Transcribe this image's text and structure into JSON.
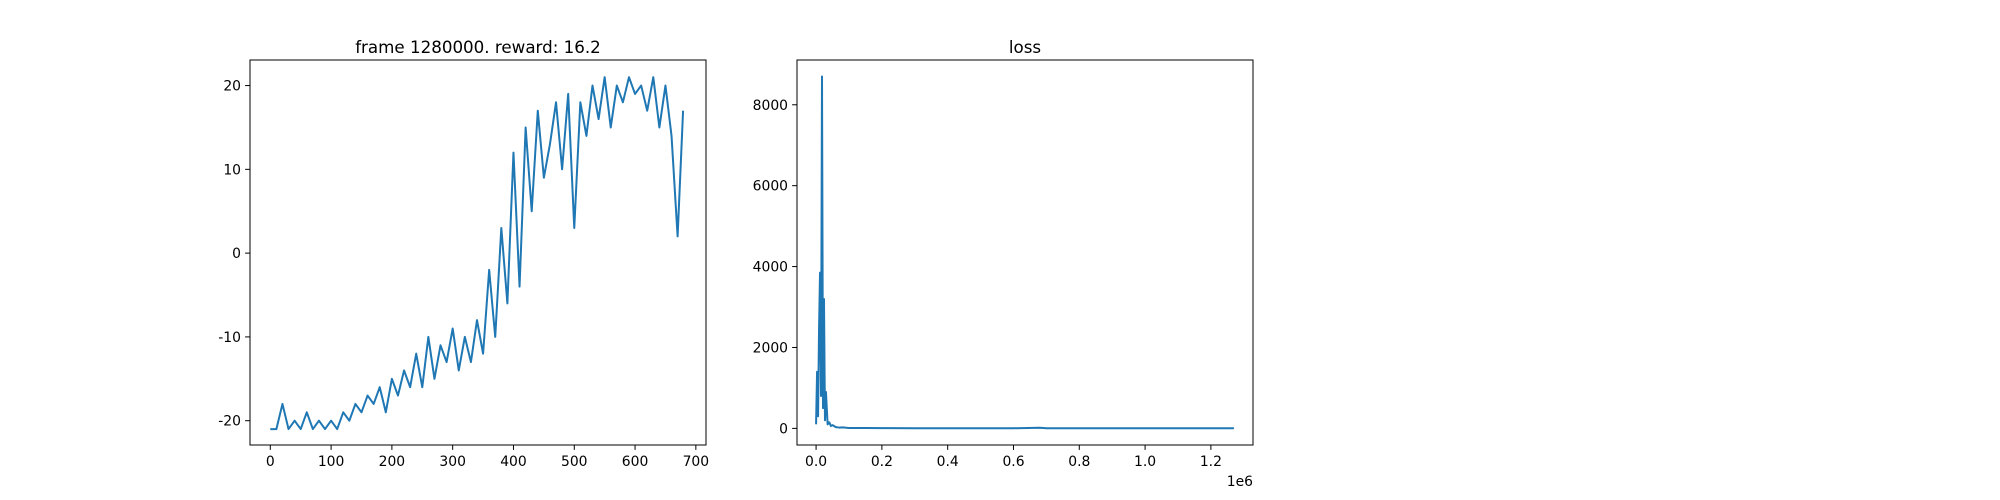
{
  "chart_data": [
    {
      "type": "line",
      "title": "frame 1280000. reward: 16.2",
      "color": "#1f77b4",
      "x": [
        0,
        10,
        20,
        30,
        40,
        50,
        60,
        70,
        80,
        90,
        100,
        110,
        120,
        130,
        140,
        150,
        160,
        170,
        180,
        190,
        200,
        210,
        220,
        230,
        240,
        250,
        260,
        270,
        280,
        290,
        300,
        310,
        320,
        330,
        340,
        350,
        360,
        370,
        380,
        390,
        400,
        410,
        420,
        430,
        440,
        450,
        460,
        470,
        480,
        490,
        500,
        510,
        520,
        530,
        540,
        550,
        560,
        570,
        580,
        590,
        600,
        610,
        620,
        630,
        640,
        650,
        660,
        670,
        679
      ],
      "values": [
        -21,
        -21,
        -18,
        -21,
        -20,
        -21,
        -19,
        -21,
        -20,
        -21,
        -20,
        -21,
        -19,
        -20,
        -18,
        -19,
        -17,
        -18,
        -16,
        -19,
        -15,
        -17,
        -14,
        -16,
        -12,
        -16,
        -10,
        -15,
        -11,
        -13,
        -9,
        -14,
        -10,
        -13,
        -8,
        -12,
        -2,
        -10,
        3,
        -6,
        12,
        -4,
        15,
        5,
        17,
        9,
        13,
        18,
        10,
        19,
        3,
        18,
        14,
        20,
        16,
        21,
        15,
        20,
        18,
        21,
        19,
        20,
        17,
        21,
        15,
        20,
        14,
        2,
        17
      ],
      "xlim": [
        -33.4,
        716.7
      ],
      "xticks": [
        0,
        100,
        200,
        300,
        400,
        500,
        600,
        700
      ],
      "ylim": [
        -22.9,
        23.05
      ],
      "yticks": [
        -20,
        -10,
        0,
        10,
        20
      ]
    },
    {
      "type": "line",
      "title": "loss",
      "color": "#1f77b4",
      "x": [
        0,
        3000,
        6000,
        9000,
        12000,
        15000,
        18000,
        21000,
        24000,
        27000,
        30000,
        35000,
        40000,
        45000,
        50000,
        60000,
        70000,
        80000,
        100000,
        150000,
        200000,
        300000,
        400000,
        500000,
        600000,
        680000,
        700000,
        800000,
        900000,
        1000000,
        1100000,
        1200000,
        1270000
      ],
      "values": [
        100,
        1400,
        300,
        2450,
        3850,
        800,
        8700,
        500,
        3200,
        200,
        900,
        100,
        150,
        60,
        80,
        30,
        20,
        25,
        10,
        8,
        5,
        4,
        3,
        3,
        3,
        15,
        3,
        2,
        2,
        2,
        2,
        2,
        2
      ],
      "xlim": [
        -58000,
        1328000
      ],
      "xticks": [
        {
          "value": 0,
          "label": "0.0"
        },
        {
          "value": 200000,
          "label": "0.2"
        },
        {
          "value": 400000,
          "label": "0.4"
        },
        {
          "value": 600000,
          "label": "0.6"
        },
        {
          "value": 800000,
          "label": "0.8"
        },
        {
          "value": 1000000,
          "label": "1.0"
        },
        {
          "value": 1200000,
          "label": "1.2"
        }
      ],
      "x_offset_label": "1e6",
      "ylim": [
        -411,
        9107
      ],
      "yticks": [
        0,
        2000,
        4000,
        6000,
        8000
      ]
    }
  ]
}
